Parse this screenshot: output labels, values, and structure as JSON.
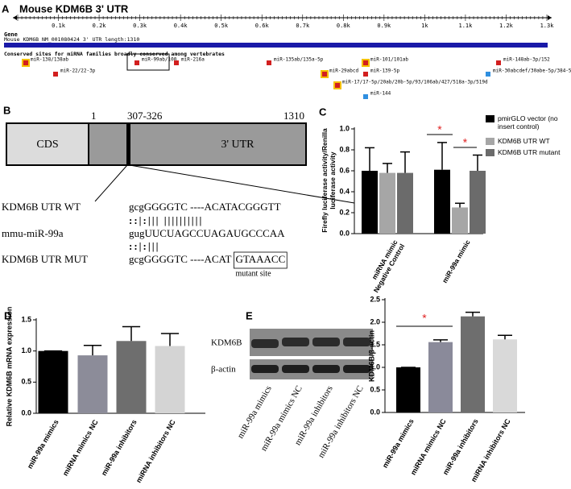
{
  "panel_labels": [
    "A",
    "B",
    "C",
    "D",
    "E"
  ],
  "panel_a": {
    "title": "Mouse KDM6B  3' UTR",
    "ruler": [
      "0.1k",
      "0.2k",
      "0.3k",
      "0.4k",
      "0.5k",
      "0.6k",
      "0.7k",
      "0.8k",
      "0.9k",
      "1k",
      "1.1k",
      "1.2k",
      "1.3k"
    ],
    "gene_heading": "Gene",
    "gene_text": "Mouse KDM6B NM_001080424 3' UTR length:1310",
    "sites_heading": "Conserved sites for miRNA families broadly conserved among vertebrates",
    "sites": [
      "miR-138/138ab",
      "miR-22/22-3p",
      "miR-99ab/100",
      "miR-216a",
      "miR-135ab/135a-5p",
      "miR-29abcd",
      "miR-101/101ab",
      "miR-139-5p",
      "miR-17/17-5p/20ab/20b-5p/93/106ab/427/518a-3p/519d",
      "miR-144",
      "miR-148ab-3p/152",
      "miR-30abcdef/30abe-5p/384-5p"
    ]
  },
  "panel_b": {
    "start": "1",
    "site": "307-326",
    "end": "1310",
    "cds": "CDS",
    "utr": "3' UTR",
    "wt_name": "KDM6B UTR WT",
    "wt_seq": "gcgGGGGTC ----ACATACGGGTT",
    "pairing_1": "::|:|||     ||||||||||",
    "mir_name": "mmu-miR-99a",
    "mir_seq": "gugUUCUAGCCUAGAUGCCCAA",
    "pairing_2": "::|:|||",
    "mut_name": "KDM6B UTR MUT",
    "mut_seq": "gcgGGGGTC ----ACAT",
    "mut_box": "GTAAACC",
    "mut_note": "mutant site"
  },
  "panel_e_blot": {
    "rows": [
      "KDM6B",
      "β-actin"
    ],
    "lanes": [
      "miR-99a mimics",
      "miR-99a mimics NC",
      "miR-99a inhibitors",
      "miR-99a inhibitors NC"
    ]
  },
  "chart_data": [
    {
      "type": "grouped_bar",
      "ylabel": "Firefly luciferase activity/Renilla luciferase activity",
      "categories": [
        "miRNA mimic Negative Control",
        "miR-99a mimic"
      ],
      "series": [
        {
          "name": "pmirGLO vector (no insert control)",
          "color": "#000000",
          "values": [
            0.6,
            0.61
          ],
          "errors": [
            0.22,
            0.26
          ]
        },
        {
          "name": "KDM6B UTR WT",
          "color": "#a6a6a6",
          "values": [
            0.58,
            0.25
          ],
          "errors": [
            0.09,
            0.04
          ]
        },
        {
          "name": "KDM6B UTR mutant",
          "color": "#6b6b6b",
          "values": [
            0.58,
            0.6
          ],
          "errors": [
            0.2,
            0.15
          ]
        }
      ],
      "ylim": [
        0,
        1
      ],
      "yticks": [
        {
          "value": 0,
          "label": "0.0"
        },
        0.2,
        0.4,
        0.6,
        0.8,
        {
          "value": 1,
          "label": "1.0"
        }
      ],
      "annotations": [
        "*",
        "*"
      ],
      "legend": "right"
    },
    {
      "type": "bar",
      "ylabel": "Relative KDM6B mRNA expression",
      "categories": [
        "miR-99a mimics",
        "miRNA mimics NC",
        "miR-99a inhibitors",
        "miRNA inhibitors NC"
      ],
      "values": [
        1,
        0.93,
        1.16,
        1.08
      ],
      "errors": [
        0,
        0.16,
        0.23,
        0.2
      ],
      "colors": [
        "#000000",
        "#8c8c99",
        "#6e6e6e",
        "#d4d4d4"
      ],
      "ylim": [
        0,
        1.5
      ],
      "yticks": [
        {
          "value": 0,
          "label": "0.0"
        },
        0.5,
        {
          "value": 1,
          "label": "1.0"
        },
        1.5
      ]
    },
    {
      "type": "bar",
      "ylabel": "KDM6B/β-actin",
      "categories": [
        "miR-99a mimics",
        "miRNA mimics NC",
        "miR-99a inhibitors",
        "miRNA inhibitors NC"
      ],
      "values": [
        1,
        1.56,
        2.13,
        1.62
      ],
      "errors": [
        0,
        0.05,
        0.09,
        0.09
      ],
      "colors": [
        "#000000",
        "#8a8a9a",
        "#6e6e6e",
        "#d9d9d9"
      ],
      "ylim": [
        0,
        2.5
      ],
      "yticks": [
        {
          "value": 0,
          "label": "0.0"
        },
        0.5,
        {
          "value": 1,
          "label": "1.0"
        },
        1.5,
        {
          "value": 2,
          "label": "2.0"
        },
        2.5
      ],
      "annotations": [
        "*"
      ]
    }
  ]
}
